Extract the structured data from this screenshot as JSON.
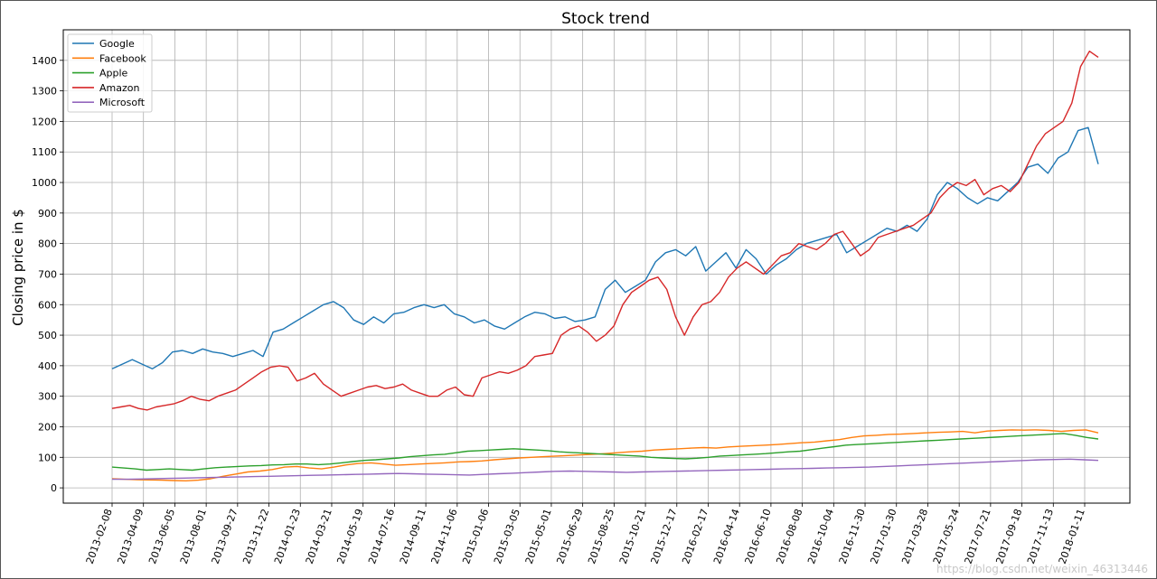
{
  "chart_data": {
    "type": "line",
    "title": "Stock trend",
    "xlabel": "",
    "ylabel": "Closing price in $",
    "ylim": [
      -50,
      1500
    ],
    "yticks": [
      0,
      100,
      200,
      300,
      400,
      500,
      600,
      700,
      800,
      900,
      1000,
      1100,
      1200,
      1300,
      1400
    ],
    "xlim": [
      "2013-02-08",
      "2018-02-07"
    ],
    "xticks": [
      "2013-02-08",
      "2013-04-09",
      "2013-06-05",
      "2013-08-01",
      "2013-09-27",
      "2013-11-22",
      "2014-01-23",
      "2014-03-21",
      "2014-05-19",
      "2014-07-16",
      "2014-09-11",
      "2014-11-06",
      "2015-01-06",
      "2015-03-05",
      "2015-05-01",
      "2015-06-29",
      "2015-08-25",
      "2015-10-21",
      "2015-12-17",
      "2016-02-17",
      "2016-04-14",
      "2016-06-10",
      "2016-08-08",
      "2016-10-04",
      "2016-11-30",
      "2017-01-30",
      "2017-03-28",
      "2017-05-24",
      "2017-07-21",
      "2017-09-18",
      "2017-11-13",
      "2018-01-11"
    ],
    "grid": true,
    "legend_position": "top-left",
    "series": [
      {
        "name": "Google",
        "color": "#1f77b4",
        "values": [
          390,
          405,
          420,
          405,
          390,
          410,
          445,
          450,
          440,
          455,
          445,
          440,
          430,
          440,
          450,
          430,
          510,
          520,
          540,
          560,
          580,
          600,
          610,
          590,
          550,
          535,
          560,
          540,
          570,
          575,
          590,
          600,
          590,
          600,
          570,
          560,
          540,
          550,
          530,
          520,
          540,
          560,
          575,
          570,
          555,
          560,
          545,
          550,
          560,
          650,
          680,
          640,
          660,
          680,
          740,
          770,
          780,
          760,
          790,
          710,
          740,
          770,
          720,
          780,
          750,
          700,
          730,
          750,
          780,
          800,
          810,
          820,
          830,
          770,
          790,
          810,
          830,
          850,
          840,
          860,
          840,
          880,
          960,
          1000,
          980,
          950,
          930,
          950,
          940,
          970,
          1000,
          1050,
          1060,
          1030,
          1080,
          1100,
          1170,
          1180,
          1060
        ]
      },
      {
        "name": "Facebook",
        "color": "#ff7f0e",
        "values": [
          30,
          28,
          27,
          26,
          25,
          24,
          23,
          25,
          30,
          38,
          45,
          52,
          55,
          60,
          68,
          70,
          65,
          62,
          68,
          75,
          80,
          82,
          78,
          74,
          76,
          78,
          80,
          82,
          85,
          86,
          88,
          92,
          95,
          98,
          100,
          102,
          104,
          106,
          108,
          110,
          112,
          115,
          118,
          120,
          124,
          126,
          128,
          130,
          132,
          130,
          134,
          136,
          138,
          140,
          142,
          145,
          148,
          150,
          154,
          158,
          165,
          170,
          172,
          175,
          176,
          178,
          180,
          182,
          183,
          185,
          180,
          186,
          188,
          190,
          189,
          190,
          188,
          185,
          188,
          190,
          180
        ]
      },
      {
        "name": "Apple",
        "color": "#2ca02c",
        "values": [
          68,
          65,
          62,
          58,
          60,
          62,
          60,
          58,
          62,
          66,
          68,
          70,
          72,
          73,
          75,
          76,
          78,
          78,
          76,
          78,
          82,
          86,
          90,
          92,
          95,
          98,
          102,
          105,
          108,
          110,
          115,
          120,
          122,
          124,
          126,
          128,
          126,
          124,
          122,
          118,
          116,
          114,
          112,
          110,
          108,
          106,
          104,
          100,
          98,
          96,
          95,
          97,
          100,
          104,
          106,
          108,
          110,
          112,
          115,
          118,
          120,
          125,
          130,
          135,
          140,
          142,
          144,
          146,
          148,
          150,
          152,
          154,
          156,
          158,
          160,
          162,
          164,
          166,
          168,
          170,
          172,
          174,
          176,
          178,
          172,
          165,
          160
        ]
      },
      {
        "name": "Amazon",
        "color": "#d62728",
        "values": [
          260,
          265,
          270,
          260,
          255,
          265,
          270,
          275,
          285,
          300,
          290,
          285,
          300,
          310,
          320,
          340,
          360,
          380,
          395,
          400,
          395,
          350,
          360,
          375,
          340,
          320,
          300,
          310,
          320,
          330,
          335,
          325,
          330,
          340,
          320,
          310,
          300,
          300,
          320,
          330,
          305,
          300,
          360,
          370,
          380,
          375,
          385,
          400,
          430,
          435,
          440,
          500,
          520,
          530,
          510,
          480,
          500,
          530,
          600,
          640,
          660,
          680,
          690,
          650,
          560,
          500,
          560,
          600,
          610,
          640,
          690,
          720,
          740,
          720,
          700,
          730,
          760,
          770,
          800,
          790,
          780,
          800,
          830,
          840,
          800,
          760,
          780,
          820,
          830,
          840,
          850,
          860,
          880,
          900,
          950,
          980,
          1000,
          990,
          1010,
          960,
          980,
          990,
          970,
          1000,
          1060,
          1120,
          1160,
          1180,
          1200,
          1260,
          1380,
          1430,
          1410
        ]
      },
      {
        "name": "Microsoft",
        "color": "#9467bd",
        "values": [
          28,
          28,
          29,
          30,
          31,
          32,
          33,
          34,
          35,
          36,
          37,
          38,
          39,
          40,
          41,
          42,
          43,
          44,
          45,
          46,
          47,
          46,
          45,
          44,
          43,
          42,
          44,
          46,
          48,
          50,
          52,
          54,
          55,
          54,
          53,
          52,
          51,
          52,
          53,
          54,
          55,
          56,
          57,
          58,
          59,
          60,
          61,
          62,
          63,
          64,
          65,
          66,
          67,
          68,
          70,
          72,
          74,
          76,
          78,
          80,
          82,
          84,
          86,
          88,
          90,
          92,
          93,
          94,
          92,
          90
        ]
      }
    ]
  },
  "watermark": "https://blog.csdn.net/weixin_46313446"
}
